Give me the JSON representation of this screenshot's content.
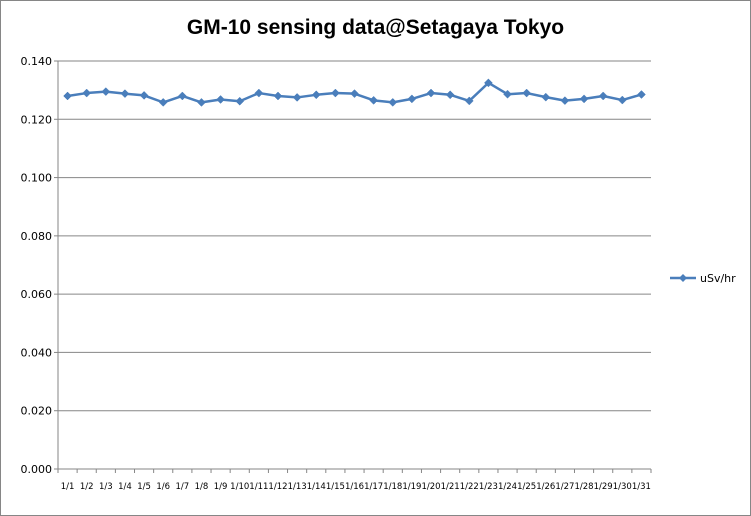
{
  "chart_data": {
    "type": "line",
    "title": "GM-10 sensing data@Setagaya Tokyo",
    "xlabel": "",
    "ylabel": "",
    "ylim": [
      0,
      0.14
    ],
    "y_ticks": [
      "0.000",
      "0.020",
      "0.040",
      "0.060",
      "0.080",
      "0.100",
      "0.120",
      "0.140"
    ],
    "categories": [
      "1/1",
      "1/2",
      "1/3",
      "1/4",
      "1/5",
      "1/6",
      "1/7",
      "1/8",
      "1/9",
      "1/10",
      "1/11",
      "1/12",
      "1/13",
      "1/14",
      "1/15",
      "1/16",
      "1/17",
      "1/18",
      "1/19",
      "1/20",
      "1/21",
      "1/22",
      "1/23",
      "1/24",
      "1/25",
      "1/26",
      "1/27",
      "1/28",
      "1/29",
      "1/30",
      "1/31"
    ],
    "series": [
      {
        "name": "uSv/hr",
        "color": "#4a7ebb",
        "values": [
          0.128,
          0.129,
          0.1295,
          0.1288,
          0.1282,
          0.1258,
          0.128,
          0.1258,
          0.1268,
          0.1262,
          0.129,
          0.128,
          0.1275,
          0.1284,
          0.129,
          0.1288,
          0.1265,
          0.1258,
          0.127,
          0.129,
          0.1284,
          0.1263,
          0.1325,
          0.1286,
          0.129,
          0.1276,
          0.1264,
          0.127,
          0.128,
          0.1266,
          0.1285
        ]
      }
    ],
    "grid": "horizontal",
    "legend": "right"
  }
}
